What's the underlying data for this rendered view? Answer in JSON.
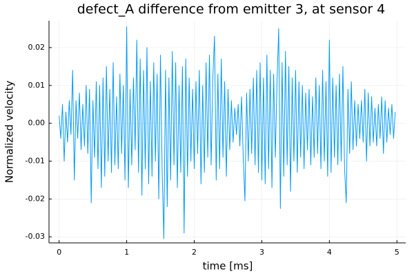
{
  "chart_data": {
    "type": "line",
    "title": "defect_A difference from emitter 3, at sensor 4",
    "xlabel": "time [ms]",
    "ylabel": "Normalized velocity",
    "xlim": [
      -0.15,
      5.13
    ],
    "xticks": [
      0,
      1,
      2,
      3,
      4,
      5
    ],
    "ylim": [
      -0.0316,
      0.0271
    ],
    "yticks": [
      -0.03,
      -0.02,
      -0.01,
      {
        "value": 0,
        "label": "0.00"
      },
      0.01,
      0.02
    ],
    "grid": true,
    "x": [
      0,
      0.025,
      0.05,
      0.075,
      0.1,
      0.125,
      0.15,
      0.175,
      0.2,
      0.225,
      0.25,
      0.275,
      0.3,
      0.325,
      0.35,
      0.375,
      0.4,
      0.425,
      0.45,
      0.475,
      0.5,
      0.525,
      0.55,
      0.575,
      0.6,
      0.625,
      0.65,
      0.675,
      0.7,
      0.725,
      0.75,
      0.775,
      0.8,
      0.825,
      0.85,
      0.875,
      0.9,
      0.925,
      0.95,
      0.975,
      1,
      1.025,
      1.05,
      1.075,
      1.1,
      1.125,
      1.15,
      1.175,
      1.2,
      1.225,
      1.25,
      1.275,
      1.3,
      1.325,
      1.35,
      1.375,
      1.4,
      1.425,
      1.45,
      1.475,
      1.5,
      1.525,
      1.55,
      1.575,
      1.6,
      1.625,
      1.65,
      1.675,
      1.7,
      1.725,
      1.75,
      1.775,
      1.8,
      1.825,
      1.85,
      1.875,
      1.9,
      1.925,
      1.95,
      1.975,
      2,
      2.025,
      2.05,
      2.075,
      2.1,
      2.125,
      2.15,
      2.175,
      2.2,
      2.225,
      2.25,
      2.275,
      2.3,
      2.325,
      2.35,
      2.375,
      2.4,
      2.425,
      2.45,
      2.475,
      2.5,
      2.525,
      2.55,
      2.575,
      2.6,
      2.625,
      2.65,
      2.675,
      2.7,
      2.725,
      2.75,
      2.775,
      2.8,
      2.825,
      2.85,
      2.875,
      2.9,
      2.925,
      2.95,
      2.975,
      3,
      3.025,
      3.05,
      3.075,
      3.1,
      3.125,
      3.15,
      3.175,
      3.2,
      3.225,
      3.25,
      3.275,
      3.3,
      3.325,
      3.35,
      3.375,
      3.4,
      3.425,
      3.45,
      3.475,
      3.5,
      3.525,
      3.55,
      3.575,
      3.6,
      3.625,
      3.65,
      3.675,
      3.7,
      3.725,
      3.75,
      3.775,
      3.8,
      3.825,
      3.85,
      3.875,
      3.9,
      3.925,
      3.95,
      3.975,
      4,
      4.025,
      4.05,
      4.075,
      4.1,
      4.125,
      4.15,
      4.175,
      4.2,
      4.225,
      4.25,
      4.275,
      4.3,
      4.325,
      4.35,
      4.375,
      4.4,
      4.425,
      4.45,
      4.475,
      4.5,
      4.525,
      4.55,
      4.575,
      4.6,
      4.625,
      4.65,
      4.675,
      4.7,
      4.725,
      4.75,
      4.775,
      4.8,
      4.825,
      4.85,
      4.875,
      4.9,
      4.925,
      4.95,
      4.975
    ],
    "series": [
      {
        "color": "#009af9",
        "values": [
          0.002,
          -0.004,
          0.005,
          -0.01,
          0.003,
          -0.005,
          0.006,
          -0.003,
          0.014,
          -0.015,
          0.006,
          -0.004,
          0.008,
          -0.007,
          0.005,
          -0.006,
          0.01,
          -0.008,
          0.009,
          -0.021,
          0.006,
          -0.009,
          0.011,
          -0.012,
          0.01,
          -0.017,
          0.012,
          -0.014,
          0.015,
          -0.01,
          0.009,
          -0.013,
          0.016,
          -0.011,
          0.007,
          -0.012,
          0.013,
          -0.008,
          0.01,
          -0.015,
          0.0255,
          -0.017,
          0.009,
          -0.011,
          0.012,
          -0.007,
          0.022,
          -0.013,
          0.017,
          -0.019,
          0.014,
          -0.012,
          0.02,
          -0.016,
          0.011,
          -0.014,
          0.016,
          -0.01,
          0.013,
          -0.02,
          0.018,
          -0.0125,
          -0.0305,
          0.014,
          -0.022,
          0.012,
          -0.015,
          0.019,
          -0.011,
          0.016,
          -0.017,
          0.01,
          -0.013,
          0.015,
          -0.029,
          0.017,
          -0.014,
          0.012,
          -0.01,
          0.009,
          -0.012,
          0.011,
          -0.008,
          0.014,
          -0.016,
          0.01,
          -0.013,
          0.016,
          -0.009,
          0.018,
          -0.011,
          0.012,
          0.023,
          -0.015,
          0.013,
          -0.012,
          0.017,
          -0.009,
          0.011,
          -0.014,
          0.009,
          -0.007,
          0.006,
          -0.005,
          0.004,
          -0.003,
          0.005,
          -0.006,
          0.007,
          -0.009,
          -0.0205,
          0.008,
          -0.01,
          0.009,
          -0.008,
          0.012,
          -0.011,
          0.014,
          -0.013,
          0.016,
          -0.015,
          0.012,
          -0.016,
          0.018,
          -0.012,
          0.014,
          -0.017,
          0.013,
          -0.009,
          0.011,
          0.025,
          -0.0225,
          0.016,
          -0.014,
          0.019,
          -0.011,
          0.015,
          -0.018,
          0.012,
          -0.01,
          0.014,
          -0.013,
          0.011,
          -0.009,
          0.01,
          -0.012,
          0.008,
          -0.007,
          0.009,
          -0.011,
          0.007,
          -0.009,
          0.012,
          -0.008,
          0.01,
          -0.012,
          0.014,
          -0.01,
          0.011,
          -0.014,
          0.022,
          -0.013,
          0.012,
          -0.009,
          0.01,
          -0.011,
          0.013,
          -0.01,
          0.015,
          -0.012,
          -0.021,
          0.009,
          -0.008,
          0.011,
          -0.007,
          0.006,
          -0.006,
          0.005,
          -0.004,
          0.006,
          -0.005,
          0.009,
          -0.01,
          0.008,
          -0.006,
          0.007,
          -0.005,
          0.004,
          -0.006,
          0.005,
          -0.004,
          0.007,
          -0.008,
          0.006,
          -0.005,
          0.004,
          -0.003,
          0.005,
          -0.004,
          0.003
        ]
      }
    ]
  }
}
